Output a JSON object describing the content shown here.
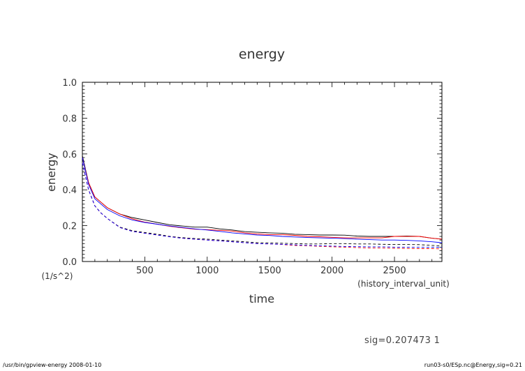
{
  "footer": {
    "left": "/usr/bin/gpview-energy  2008-01-10",
    "right": "run03-s0/ESp.nc@Energy,sig=0.21"
  },
  "annotation": "sig=0.207473 1",
  "chart_data": {
    "type": "line",
    "title": "energy",
    "xlabel": "time",
    "xunit": "(history_interval_unit)",
    "ylabel": "energy",
    "yunit": "(1/s^2)",
    "xlim": [
      0,
      2880
    ],
    "ylim": [
      0.0,
      1.0
    ],
    "xticks": [
      500,
      1000,
      1500,
      2000,
      2500
    ],
    "xtick_labels": [
      "500",
      "1000",
      "1500",
      "2000",
      "2500"
    ],
    "yticks": [
      0.0,
      0.2,
      0.4,
      0.6,
      0.8,
      1.0
    ],
    "ytick_labels": [
      "0.0",
      "0.2",
      "0.4",
      "0.6",
      "0.8",
      "1.0"
    ],
    "grid": false,
    "x": [
      0,
      50,
      100,
      150,
      200,
      300,
      400,
      500,
      600,
      700,
      800,
      900,
      1000,
      1100,
      1200,
      1300,
      1400,
      1500,
      1600,
      1700,
      1800,
      1900,
      2000,
      2100,
      2200,
      2300,
      2400,
      2500,
      2600,
      2700,
      2800,
      2880
    ],
    "series": [
      {
        "color": "#000000",
        "style": "solid",
        "values": [
          0.59,
          0.44,
          0.36,
          0.33,
          0.3,
          0.265,
          0.245,
          0.232,
          0.218,
          0.205,
          0.198,
          0.192,
          0.192,
          0.182,
          0.176,
          0.167,
          0.163,
          0.16,
          0.158,
          0.152,
          0.15,
          0.148,
          0.148,
          0.147,
          0.142,
          0.14,
          0.14,
          0.14,
          0.142,
          0.14,
          0.13,
          0.125
        ]
      },
      {
        "color": "#ff0000",
        "style": "solid",
        "values": [
          0.58,
          0.44,
          0.36,
          0.33,
          0.3,
          0.265,
          0.238,
          0.22,
          0.208,
          0.196,
          0.188,
          0.18,
          0.178,
          0.174,
          0.17,
          0.16,
          0.154,
          0.15,
          0.15,
          0.146,
          0.14,
          0.138,
          0.135,
          0.132,
          0.132,
          0.132,
          0.132,
          0.14,
          0.14,
          0.14,
          0.13,
          0.125
        ]
      },
      {
        "color": "#0000ff",
        "style": "solid",
        "values": [
          0.58,
          0.43,
          0.35,
          0.32,
          0.29,
          0.255,
          0.232,
          0.218,
          0.208,
          0.198,
          0.19,
          0.182,
          0.176,
          0.168,
          0.16,
          0.154,
          0.148,
          0.145,
          0.14,
          0.137,
          0.134,
          0.132,
          0.13,
          0.128,
          0.125,
          0.122,
          0.12,
          0.12,
          0.118,
          0.115,
          0.11,
          0.105
        ]
      },
      {
        "color": "#000000",
        "style": "dashed",
        "values": [
          0.55,
          0.4,
          0.31,
          0.27,
          0.24,
          0.192,
          0.172,
          0.162,
          0.152,
          0.14,
          0.133,
          0.128,
          0.125,
          0.12,
          0.115,
          0.11,
          0.105,
          0.104,
          0.102,
          0.1,
          0.098,
          0.098,
          0.1,
          0.1,
          0.098,
          0.098,
          0.096,
          0.095,
          0.095,
          0.094,
          0.09,
          0.087
        ]
      },
      {
        "color": "#ff0000",
        "style": "dashed",
        "values": [
          0.55,
          0.4,
          0.31,
          0.27,
          0.24,
          0.19,
          0.168,
          0.158,
          0.148,
          0.138,
          0.13,
          0.125,
          0.12,
          0.115,
          0.11,
          0.105,
          0.1,
          0.098,
          0.095,
          0.09,
          0.088,
          0.085,
          0.082,
          0.08,
          0.078,
          0.075,
          0.075,
          0.074,
          0.073,
          0.072,
          0.072,
          0.07
        ]
      },
      {
        "color": "#0000ff",
        "style": "dashed",
        "values": [
          0.55,
          0.4,
          0.31,
          0.27,
          0.24,
          0.19,
          0.168,
          0.158,
          0.148,
          0.138,
          0.13,
          0.125,
          0.12,
          0.115,
          0.11,
          0.105,
          0.1,
          0.098,
          0.096,
          0.093,
          0.09,
          0.088,
          0.086,
          0.084,
          0.083,
          0.082,
          0.082,
          0.08,
          0.08,
          0.08,
          0.08,
          0.079
        ]
      }
    ]
  }
}
